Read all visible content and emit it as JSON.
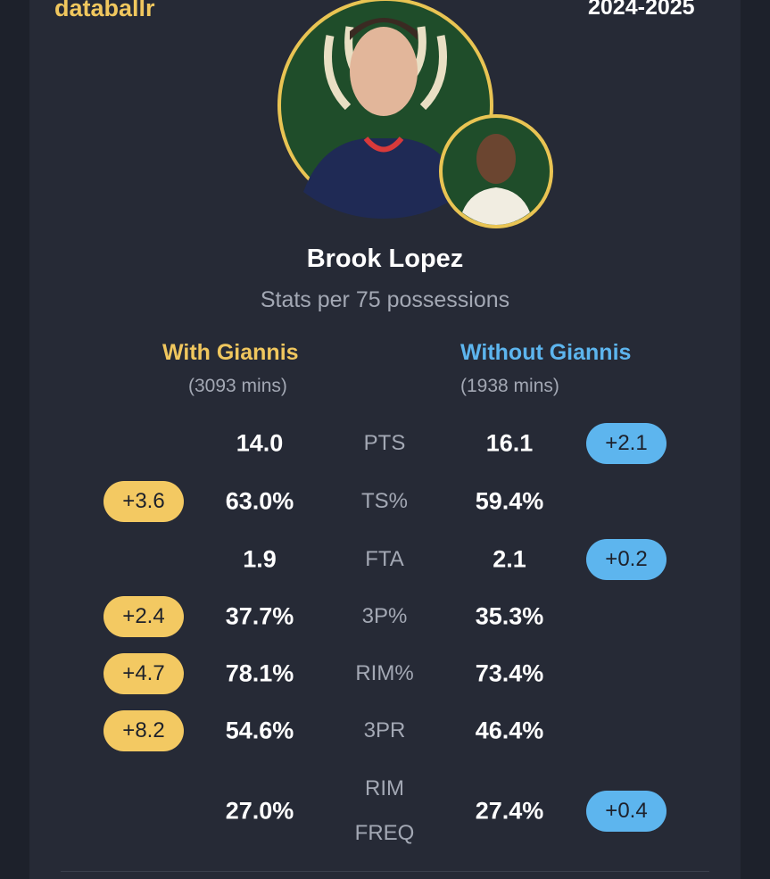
{
  "header": {
    "brand": "databallr",
    "season": "2024-2025"
  },
  "player": {
    "name": "Brook Lopez",
    "subtitle": "Stats per 75 possessions"
  },
  "columns": [
    {
      "title": "With Giannis",
      "minutes": "(3093 mins)"
    },
    {
      "title": "Without Giannis",
      "minutes": "(1938 mins)"
    }
  ],
  "rows": [
    {
      "stat": "PTS",
      "with": "14.0",
      "without": "16.1",
      "without_diff": "+2.1"
    },
    {
      "stat": "TS%",
      "with": "63.0%",
      "without": "59.4%",
      "with_diff": "+3.6"
    },
    {
      "stat": "FTA",
      "with": "1.9",
      "without": "2.1",
      "without_diff": "+0.2"
    },
    {
      "stat": "3P%",
      "with": "37.7%",
      "without": "35.3%",
      "with_diff": "+2.4"
    },
    {
      "stat": "RIM%",
      "with": "78.1%",
      "without": "73.4%",
      "with_diff": "+4.7"
    },
    {
      "stat": "3PR",
      "with": "54.6%",
      "without": "46.4%",
      "with_diff": "+8.2"
    },
    {
      "stat": "RIM FREQ",
      "with": "27.0%",
      "without": "27.4%",
      "without_diff": "+0.4"
    }
  ]
}
